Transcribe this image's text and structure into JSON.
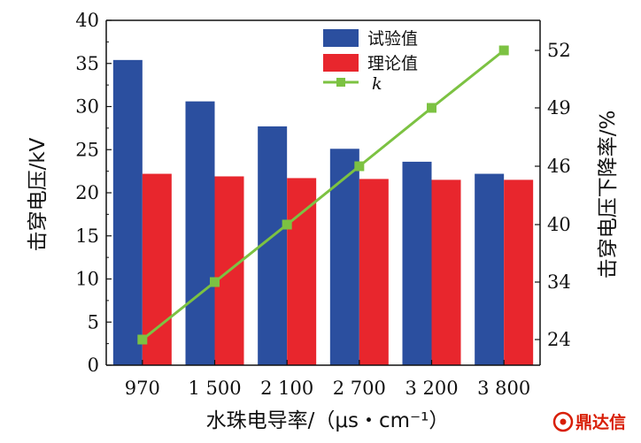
{
  "chart_data": {
    "type": "bar",
    "categories": [
      "970",
      "1 500",
      "2 100",
      "2 700",
      "3 200",
      "3 800"
    ],
    "series": [
      {
        "name": "试验值",
        "values": [
          35.4,
          30.6,
          27.7,
          25.1,
          23.6,
          22.2
        ],
        "color": "#2b4f9f",
        "axis": "left"
      },
      {
        "name": "理论值",
        "values": [
          22.2,
          21.9,
          21.7,
          21.6,
          21.5,
          21.5
        ],
        "color": "#e8262d",
        "axis": "left"
      },
      {
        "name": "k",
        "type": "line",
        "values": [
          24,
          34,
          40,
          46,
          49,
          52
        ],
        "color": "#7cc242",
        "axis": "right"
      }
    ],
    "xlabel": "水珠电导率/（μs・cm⁻¹）",
    "ylabel": "击穿电压/kV",
    "y2label": "击穿电压下降率/%",
    "ylim": [
      0,
      40
    ],
    "yticks": [
      "0",
      "5",
      "10",
      "15",
      "20",
      "25",
      "30",
      "35",
      "40"
    ],
    "y2ticks": [
      "24",
      "34",
      "40",
      "46",
      "49",
      "52"
    ],
    "legend_position": "top-right",
    "grid": false
  },
  "watermark": {
    "text": "鼎达信",
    "logo_color": "#d81e06"
  }
}
